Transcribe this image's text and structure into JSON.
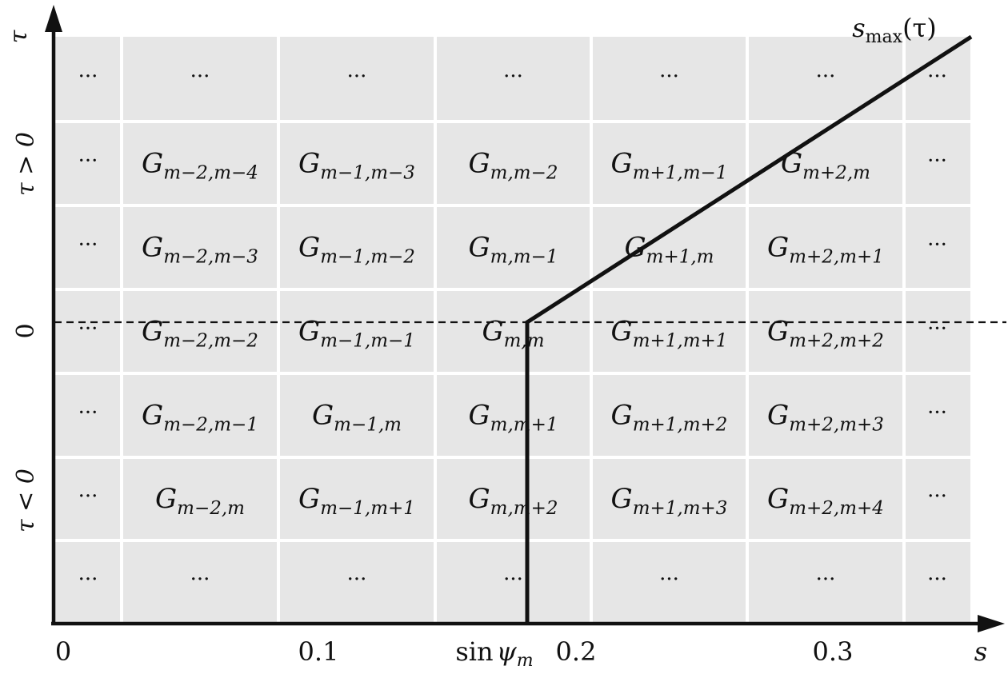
{
  "axes": {
    "x_label": "s",
    "y_label": "τ",
    "x_ticks": [
      "0",
      "0.1",
      "0.2",
      "0.3"
    ],
    "y_region_labels": [
      "τ > 0",
      "0",
      "τ < 0"
    ],
    "x_marker_label": {
      "pre": "sin",
      "psi": "ψ",
      "sub": "m"
    }
  },
  "curve_label": {
    "main": "s",
    "sub": "max",
    "arg": "(τ)"
  },
  "grid": {
    "rows": [
      [
        {
          "t": "···"
        },
        {
          "t": "···"
        },
        {
          "t": "···"
        },
        {
          "t": "···"
        },
        {
          "t": "···"
        },
        {
          "t": "···"
        },
        {
          "t": "···"
        }
      ],
      [
        {
          "t": "···"
        },
        {
          "G": "G",
          "sub": "m−2,m−4"
        },
        {
          "G": "G",
          "sub": "m−1,m−3"
        },
        {
          "G": "G",
          "sub": "m,m−2"
        },
        {
          "G": "G",
          "sub": "m+1,m−1"
        },
        {
          "G": "G",
          "sub": "m+2,m"
        },
        {
          "t": "···"
        }
      ],
      [
        {
          "t": "···"
        },
        {
          "G": "G",
          "sub": "m−2,m−3"
        },
        {
          "G": "G",
          "sub": "m−1,m−2"
        },
        {
          "G": "G",
          "sub": "m,m−1"
        },
        {
          "G": "G",
          "sub": "m+1,m"
        },
        {
          "G": "G",
          "sub": "m+2,m+1"
        },
        {
          "t": "···"
        }
      ],
      [
        {
          "t": "···"
        },
        {
          "G": "G",
          "sub": "m−2,m−2"
        },
        {
          "G": "G",
          "sub": "m−1,m−1"
        },
        {
          "G": "G",
          "sub": "m,m"
        },
        {
          "G": "G",
          "sub": "m+1,m+1"
        },
        {
          "G": "G",
          "sub": "m+2,m+2"
        },
        {
          "t": "···"
        }
      ],
      [
        {
          "t": "···"
        },
        {
          "G": "G",
          "sub": "m−2,m−1"
        },
        {
          "G": "G",
          "sub": "m−1,m"
        },
        {
          "G": "G",
          "sub": "m,m+1"
        },
        {
          "G": "G",
          "sub": "m+1,m+2"
        },
        {
          "G": "G",
          "sub": "m+2,m+3"
        },
        {
          "t": "···"
        }
      ],
      [
        {
          "t": "···"
        },
        {
          "G": "G",
          "sub": "m−2,m"
        },
        {
          "G": "G",
          "sub": "m−1,m+1"
        },
        {
          "G": "G",
          "sub": "m,m+2"
        },
        {
          "G": "G",
          "sub": "m+1,m+3"
        },
        {
          "G": "G",
          "sub": "m+2,m+4"
        },
        {
          "t": "···"
        }
      ],
      [
        {
          "t": "···"
        },
        {
          "t": "···"
        },
        {
          "t": "···"
        },
        {
          "t": "···"
        },
        {
          "t": "···"
        },
        {
          "t": "···"
        },
        {
          "t": "···"
        }
      ]
    ]
  }
}
